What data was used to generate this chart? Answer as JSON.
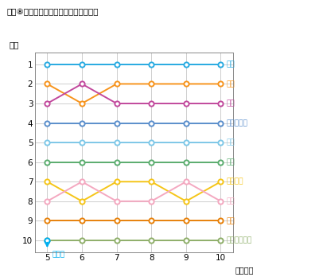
{
  "title": "図表⑧　発信時間数の対地別順位の推移",
  "xlabel": "（年度）",
  "ylabel": "順位",
  "x_values": [
    5,
    6,
    7,
    8,
    9,
    10
  ],
  "series": [
    {
      "name": "米国",
      "color": "#29ABE2",
      "ranks": [
        1,
        1,
        1,
        1,
        1,
        1
      ]
    },
    {
      "name": "中国",
      "color": "#F7941D",
      "ranks": [
        2,
        3,
        2,
        2,
        2,
        2
      ]
    },
    {
      "name": "韓国",
      "color": "#C2499D",
      "ranks": [
        3,
        2,
        3,
        3,
        3,
        3
      ]
    },
    {
      "name": "フィリピン",
      "color": "#5B8FCC",
      "ranks": [
        4,
        4,
        4,
        4,
        4,
        4
      ]
    },
    {
      "name": "台湾",
      "color": "#7FC8E8",
      "ranks": [
        5,
        5,
        5,
        5,
        5,
        5
      ]
    },
    {
      "name": "タイ",
      "color": "#5BAD6F",
      "ranks": [
        6,
        6,
        6,
        6,
        6,
        6
      ]
    },
    {
      "name": "ブラジル",
      "color": "#F5C518",
      "ranks": [
        7,
        8,
        7,
        7,
        8,
        7
      ]
    },
    {
      "name": "香港",
      "color": "#F4A8C0",
      "ranks": [
        8,
        7,
        8,
        8,
        7,
        8
      ]
    },
    {
      "name": "英国",
      "color": "#E8820C",
      "ranks": [
        9,
        9,
        9,
        9,
        9,
        9
      ]
    },
    {
      "name": "シンガポール",
      "color": "#8FAF6A",
      "ranks": [
        10,
        10,
        10,
        10,
        10,
        10
      ]
    },
    {
      "name": "イラン",
      "color": "#00AEEF",
      "ranks": [
        10,
        11,
        null,
        null,
        null,
        null
      ]
    }
  ],
  "ylim": [
    10.6,
    0.4
  ],
  "xlim": [
    4.65,
    10.35
  ],
  "grid_color": "#BBBBBB",
  "bg_color": "#FFFFFF",
  "figsize": [
    4.01,
    3.48
  ],
  "dpi": 100
}
